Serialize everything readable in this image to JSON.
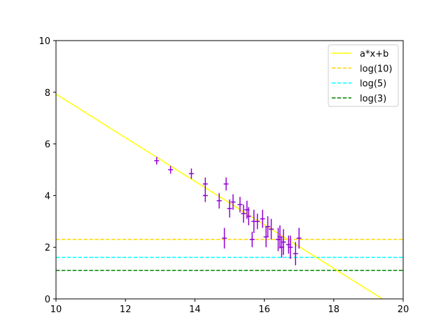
{
  "chart_data": {
    "type": "scatter",
    "title": "",
    "xlabel": "",
    "ylabel": "",
    "xlim": [
      10,
      20
    ],
    "ylim": [
      0,
      10
    ],
    "xticks": [
      "10",
      "12",
      "14",
      "16",
      "18",
      "20"
    ],
    "yticks": [
      "0",
      "2",
      "4",
      "6",
      "8",
      "10"
    ],
    "grid": false,
    "legend_position": "upper-right",
    "fit_line": {
      "name": "a*x+b",
      "color": "#ffff00",
      "x": [
        10,
        19.4
      ],
      "y": [
        7.93,
        0
      ]
    },
    "hlines": [
      {
        "name": "log(10)",
        "y": 2.3,
        "color": "#ffd700",
        "style": "dashed"
      },
      {
        "name": "log(5)",
        "y": 1.61,
        "color": "#00ffff",
        "style": "dashed"
      },
      {
        "name": "log(3)",
        "y": 1.1,
        "color": "#008000",
        "style": "dashed"
      }
    ],
    "points": {
      "color": "#9400d3",
      "x": [
        12.9,
        13.3,
        13.9,
        14.3,
        14.3,
        14.7,
        14.85,
        14.9,
        15.0,
        15.1,
        15.3,
        15.4,
        15.5,
        15.55,
        15.65,
        15.7,
        15.8,
        15.95,
        16.05,
        16.1,
        16.2,
        16.4,
        16.45,
        16.5,
        16.55,
        16.7,
        16.75,
        16.9,
        17.0
      ],
      "y": [
        5.35,
        5.0,
        4.85,
        4.45,
        4.0,
        3.8,
        2.35,
        4.45,
        3.5,
        3.75,
        3.65,
        3.3,
        3.45,
        3.2,
        2.3,
        3.0,
        3.0,
        3.1,
        2.4,
        2.8,
        2.7,
        2.3,
        2.4,
        2.0,
        2.2,
        2.1,
        2.0,
        1.75,
        2.35
      ],
      "yerr": [
        0.15,
        0.15,
        0.2,
        0.25,
        0.25,
        0.3,
        0.4,
        0.25,
        0.35,
        0.3,
        0.3,
        0.35,
        0.35,
        0.35,
        0.3,
        0.45,
        0.3,
        0.35,
        0.4,
        0.4,
        0.4,
        0.45,
        0.45,
        0.4,
        0.5,
        0.35,
        0.45,
        0.45,
        0.4
      ]
    }
  }
}
